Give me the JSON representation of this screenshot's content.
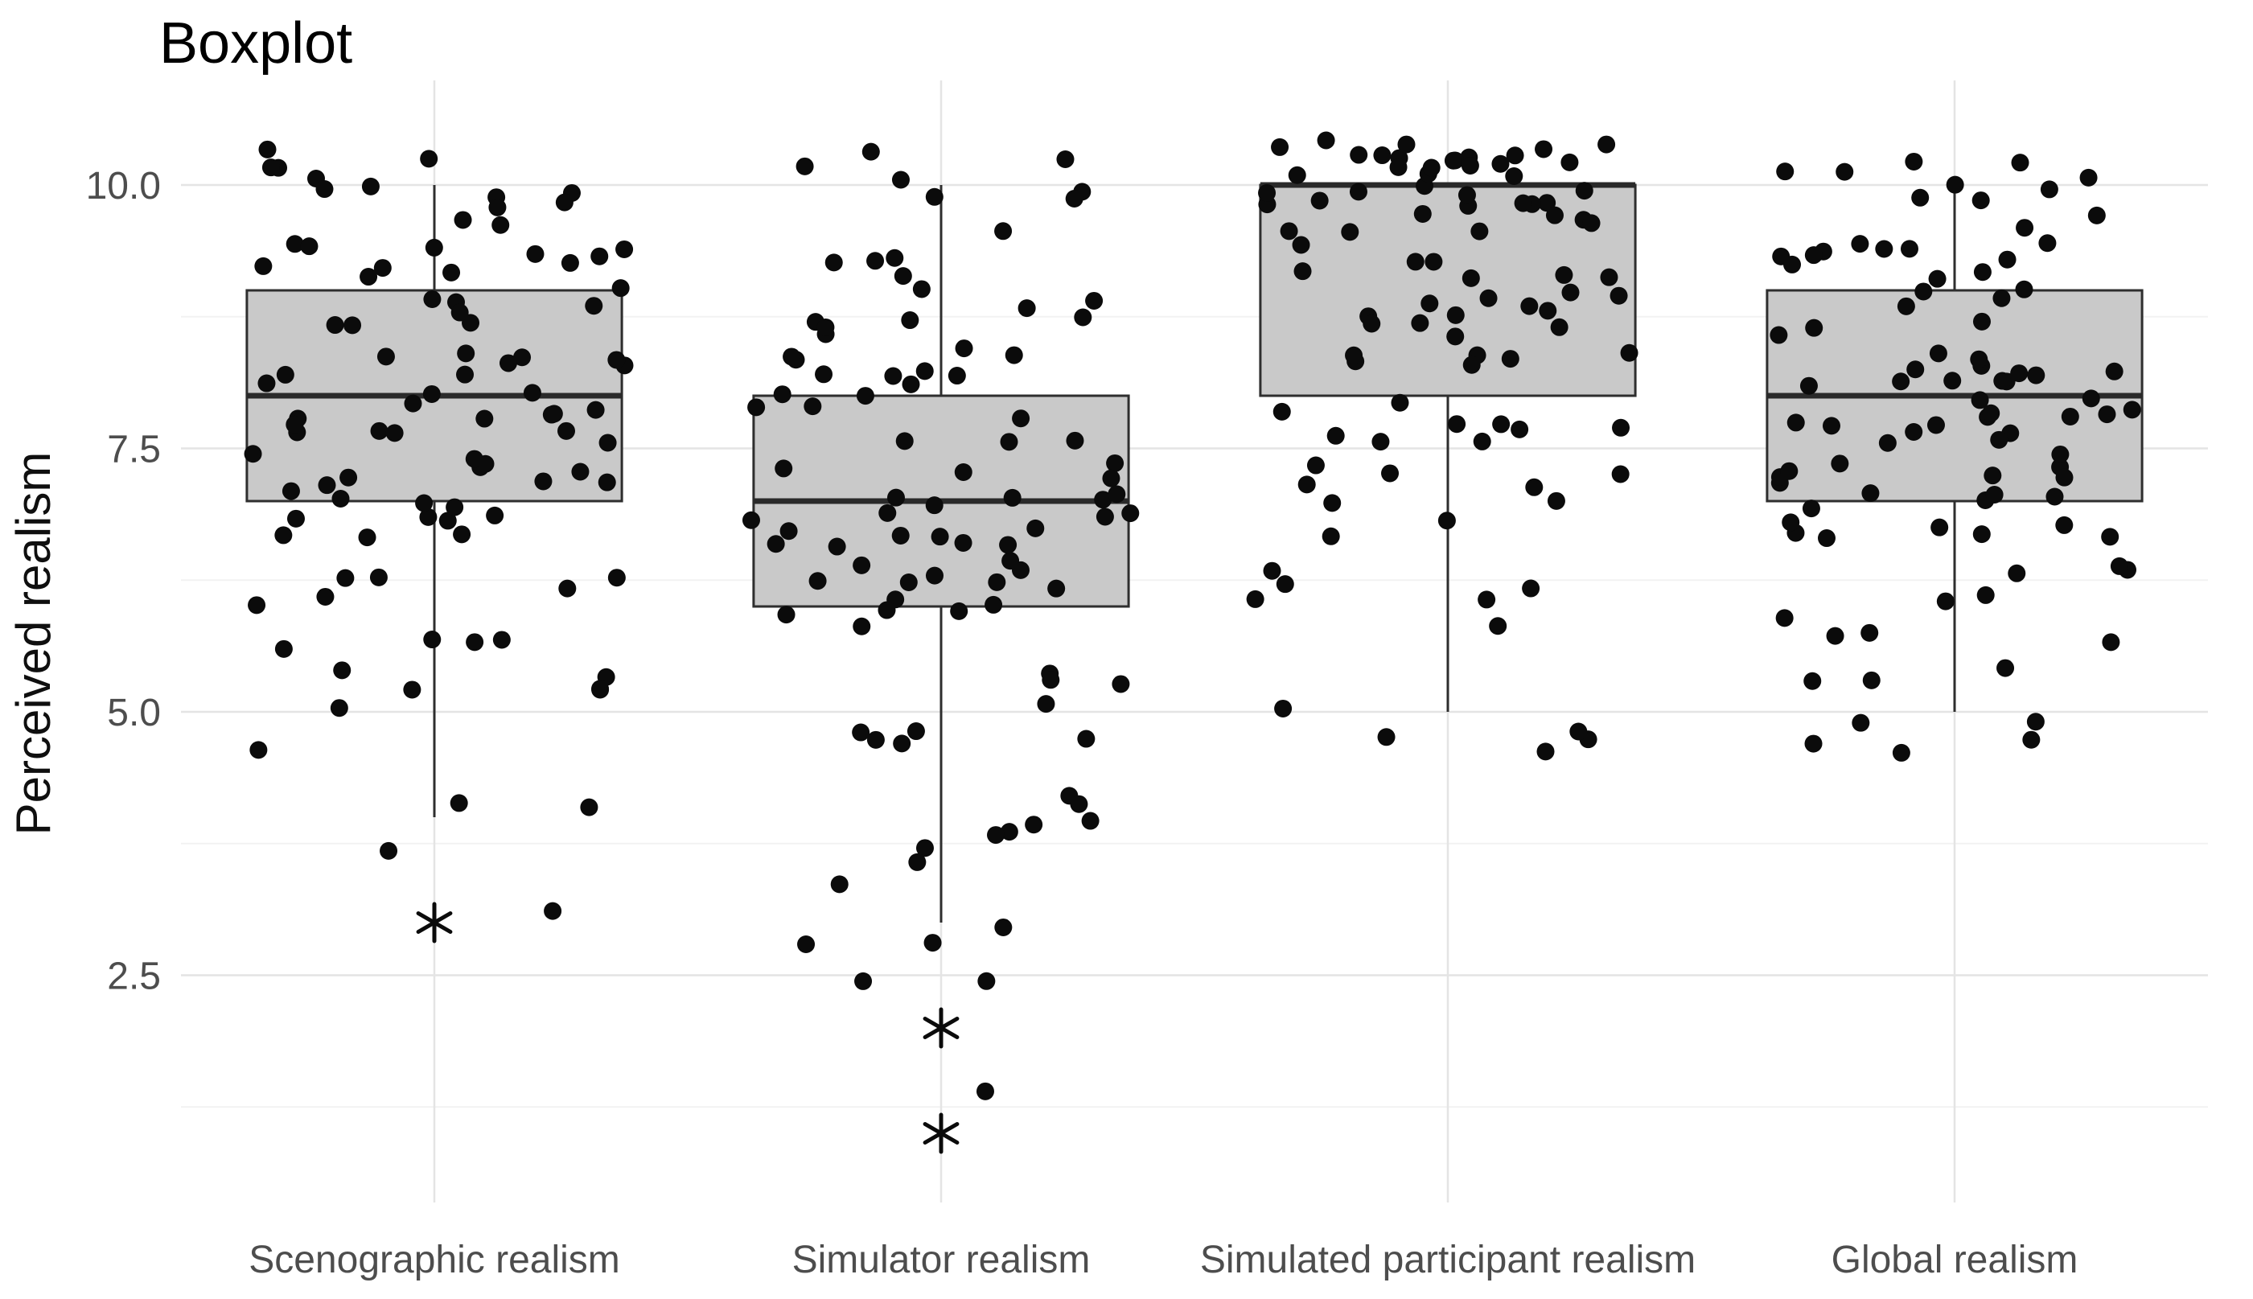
{
  "title": "Boxplot",
  "y_axis": {
    "title": "Perceived realism",
    "ticks": [
      {
        "label": "10.0",
        "value": 10
      },
      {
        "label": "7.5",
        "value": 7.5
      },
      {
        "label": "5.0",
        "value": 5
      },
      {
        "label": "2.5",
        "value": 2.5
      }
    ]
  },
  "chart_data": {
    "type": "boxplot",
    "title": "Boxplot",
    "xlabel": "",
    "ylabel": "Perceived realism",
    "categories": [
      "Scenographic realism",
      "Simulator realism",
      "Simulated participant realism",
      "Global realism"
    ],
    "ylim": [
      0.5,
      10.95
    ],
    "y_tick_values": [
      2.5,
      5,
      7.5,
      10
    ],
    "grid": {
      "major_y": [
        2.5,
        5,
        7.5,
        10
      ],
      "minor_y": [
        1.25,
        3.75,
        6.25,
        8.75
      ],
      "vertical_major": "category-centers",
      "legend": "none"
    },
    "series": [
      {
        "name": "Scenographic realism",
        "whisker_low": 4,
        "q1": 7,
        "median": 8,
        "q3": 9,
        "whisker_high": 10,
        "outliers": [
          3
        ],
        "outlier_marker": "asterisk",
        "rating_counts": {
          "3": 1,
          "4": 3,
          "5": 7,
          "6": 10,
          "7": 20,
          "8": 23,
          "9": 19,
          "10": 13
        }
      },
      {
        "name": "Simulator realism",
        "whisker_low": 3,
        "q1": 6,
        "median": 7,
        "q3": 8,
        "whisker_high": 10,
        "outliers": [
          2,
          1
        ],
        "outlier_marker": "asterisk",
        "rating_counts": {
          "1": 1,
          "2": 2,
          "3": 4,
          "4": 8,
          "5": 9,
          "6": 14,
          "7": 21,
          "8": 17,
          "9": 12,
          "10": 8
        }
      },
      {
        "name": "Simulated participant realism",
        "whisker_low": 5,
        "q1": 8,
        "median": 10,
        "q3": 10,
        "whisker_high": 10,
        "outliers": [],
        "outlier_marker": "asterisk",
        "rating_counts": {
          "5": 5,
          "6": 6,
          "7": 9,
          "8": 15,
          "9": 19,
          "10": 38
        }
      },
      {
        "name": "Global realism",
        "whisker_low": 5,
        "q1": 7,
        "median": 8,
        "q3": 9,
        "whisker_high": 10,
        "outliers": [],
        "outlier_marker": "asterisk",
        "rating_counts": {
          "5": 8,
          "6": 9,
          "7": 20,
          "8": 26,
          "9": 18,
          "10": 11
        }
      }
    ],
    "jitter": {
      "width_fraction": 0.38,
      "height_units": 0.45
    },
    "style": {
      "box_fill": "#c9c9c9",
      "box_stroke": "#2e2e2e",
      "median_stroke": "#2a2a2a",
      "dot_color": "#0b0b0b",
      "grid_major": "#e4e4e4",
      "grid_minor": "#f2f2f2",
      "axis_text": "#4d4d4d",
      "title_color": "#000000",
      "background": "#ffffff"
    }
  }
}
